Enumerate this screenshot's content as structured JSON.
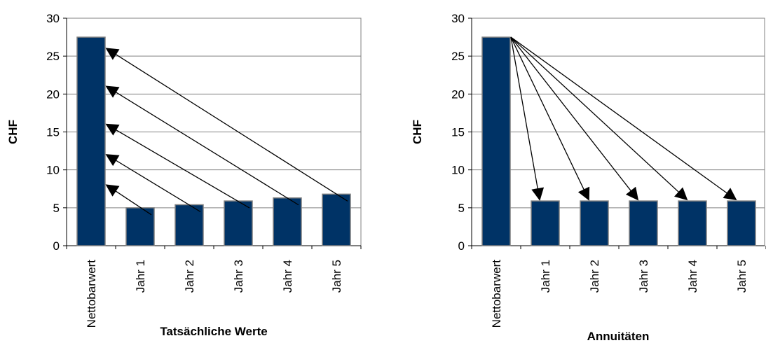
{
  "chart_data": [
    {
      "type": "bar",
      "categories": [
        "Nettobarwert",
        "Jahr 1",
        "Jahr 2",
        "Jahr 3",
        "Jahr 4",
        "Jahr 5"
      ],
      "values": [
        27.5,
        5.0,
        5.4,
        5.9,
        6.3,
        6.8
      ],
      "xlabel": "Tatsächliche Werte",
      "ylabel": "CHF",
      "ylim": [
        0,
        30
      ],
      "yticks": [
        0,
        5,
        10,
        15,
        20,
        25,
        30
      ],
      "grid": true,
      "bar_color": "#003366",
      "annotations": "arrows from each year bar to the Nettobarwert bar at 8, 12, 16, 21, 26",
      "arrow_targets": [
        8,
        12,
        16,
        21,
        26
      ]
    },
    {
      "type": "bar",
      "categories": [
        "Nettobarwert",
        "Jahr 1",
        "Jahr 2",
        "Jahr 3",
        "Jahr 4",
        "Jahr 5"
      ],
      "values": [
        27.5,
        5.9,
        5.9,
        5.9,
        5.9,
        5.9
      ],
      "xlabel": "Annuitäten",
      "ylabel": "CHF",
      "ylim": [
        0,
        30
      ],
      "yticks": [
        0,
        5,
        10,
        15,
        20,
        25,
        30
      ],
      "grid": true,
      "bar_color": "#003366",
      "annotations": "arrows from top of Nettobarwert bar down to each year bar"
    }
  ]
}
